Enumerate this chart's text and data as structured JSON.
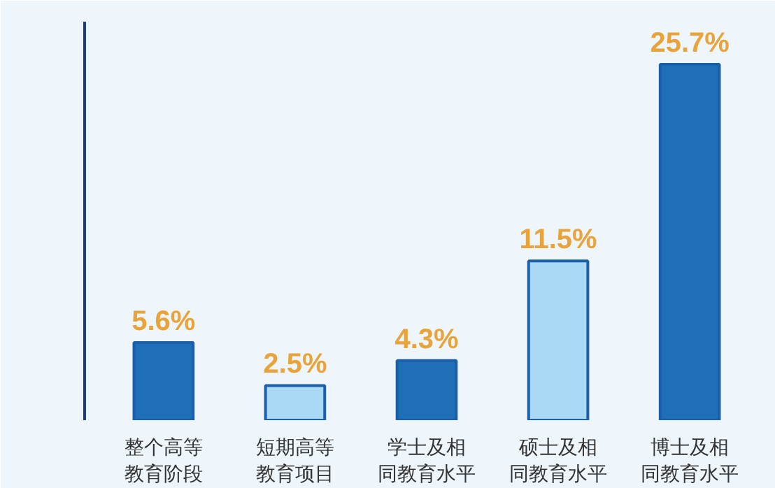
{
  "chart_data": {
    "type": "bar",
    "categories": [
      "整个高等教育阶段",
      "短期高等教育项目",
      "学士及相同教育水平",
      "硕士及相同教育水平",
      "博士及相同教育水平"
    ],
    "values": [
      5.6,
      2.5,
      4.3,
      11.5,
      25.7
    ],
    "value_labels": [
      "5.6%",
      "2.5%",
      "4.3%",
      "11.5%",
      "25.7%"
    ],
    "colors": [
      "#1f6fb8",
      "#a9d9f5",
      "#1f6fb8",
      "#a9d9f5",
      "#1f6fb8"
    ],
    "tick_labels": "x",
    "grid": false
  }
}
